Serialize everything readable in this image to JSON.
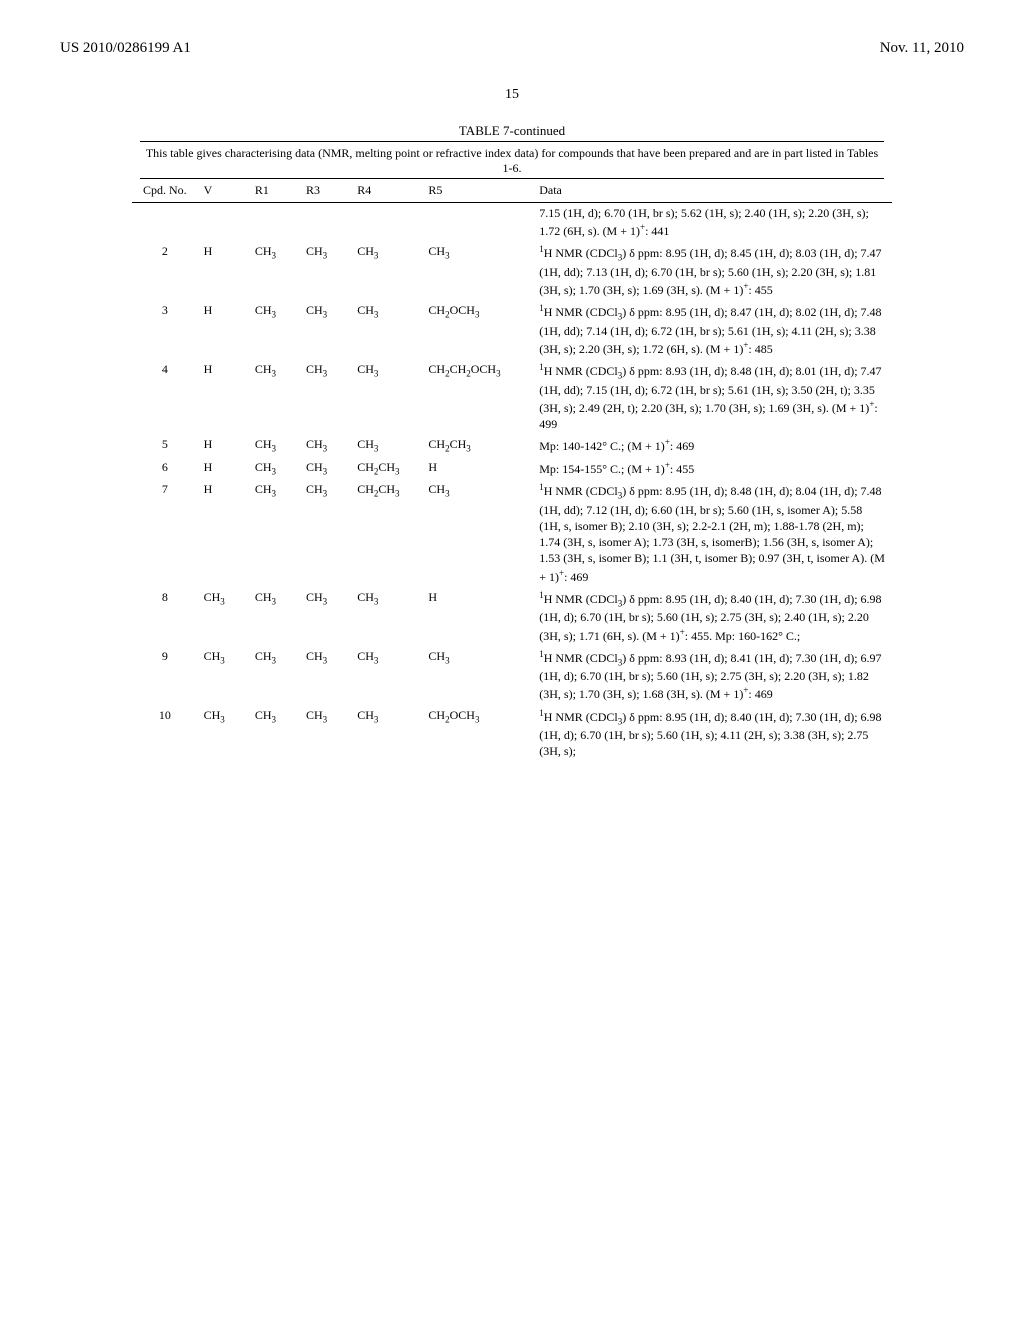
{
  "header": {
    "left": "US 2010/0286199 A1",
    "right": "Nov. 11, 2010"
  },
  "page_number": "15",
  "table": {
    "title": "TABLE 7-continued",
    "caption": "This table gives characterising data (NMR, melting point or refractive index data) for compounds that have been prepared and are in part listed in Tables 1-6.",
    "columns": [
      "Cpd. No.",
      "V",
      "R1",
      "R3",
      "R4",
      "R5",
      "Data"
    ],
    "rows": [
      {
        "cpd": "",
        "v": "",
        "r1": "",
        "r3": "",
        "r4": "",
        "r5": "",
        "data": "7.15 (1H, d); 6.70 (1H, br s); 5.62 (1H, s); 2.40 (1H, s); 2.20 (3H, s); 1.72 (6H, s). (M + 1)⁺: 441"
      },
      {
        "cpd": "2",
        "v": "H",
        "r1": "CH₃",
        "r3": "CH₃",
        "r4": "CH₃",
        "r5": "CH₃",
        "data": "¹H NMR (CDCl₃) δ ppm: 8.95 (1H, d); 8.45 (1H, d); 8.03 (1H, d); 7.47 (1H, dd); 7.13 (1H, d); 6.70 (1H, br s); 5.60 (1H, s); 2.20 (3H, s); 1.81 (3H, s); 1.70 (3H, s); 1.69 (3H, s). (M + 1)⁺: 455"
      },
      {
        "cpd": "3",
        "v": "H",
        "r1": "CH₃",
        "r3": "CH₃",
        "r4": "CH₃",
        "r5": "CH₂OCH₃",
        "data": "¹H NMR (CDCl₃) δ ppm: 8.95 (1H, d); 8.47 (1H, d); 8.02 (1H, d); 7.48 (1H, dd); 7.14 (1H, d); 6.72 (1H, br s); 5.61 (1H, s); 4.11 (2H, s); 3.38 (3H, s); 2.20 (3H, s); 1.72 (6H, s). (M + 1)⁺: 485"
      },
      {
        "cpd": "4",
        "v": "H",
        "r1": "CH₃",
        "r3": "CH₃",
        "r4": "CH₃",
        "r5": "CH₂CH₂OCH₃",
        "data": "¹H NMR (CDCl₃) δ ppm: 8.93 (1H, d); 8.48 (1H, d); 8.01 (1H, d); 7.47 (1H, dd); 7.15 (1H, d); 6.72 (1H, br s); 5.61 (1H, s); 3.50 (2H, t); 3.35 (3H, s); 2.49 (2H, t); 2.20 (3H, s); 1.70 (3H, s); 1.69 (3H, s). (M + 1)⁺: 499"
      },
      {
        "cpd": "5",
        "v": "H",
        "r1": "CH₃",
        "r3": "CH₃",
        "r4": "CH₃",
        "r5": "CH₂CH₃",
        "data": "Mp: 140-142° C.; (M + 1)⁺: 469"
      },
      {
        "cpd": "6",
        "v": "H",
        "r1": "CH₃",
        "r3": "CH₃",
        "r4": "CH₂CH₃",
        "r5": "H",
        "data": "Mp: 154-155° C.; (M + 1)⁺: 455"
      },
      {
        "cpd": "7",
        "v": "H",
        "r1": "CH₃",
        "r3": "CH₃",
        "r4": "CH₂CH₃",
        "r5": "CH₃",
        "data": "¹H NMR (CDCl₃) δ ppm: 8.95 (1H, d); 8.48 (1H, d); 8.04 (1H, d); 7.48 (1H, dd); 7.12 (1H, d); 6.60 (1H, br s); 5.60 (1H, s, isomer A); 5.58 (1H, s, isomer B); 2.10 (3H, s); 2.2-2.1 (2H, m); 1.88-1.78 (2H, m); 1.74 (3H, s, isomer A); 1.73 (3H, s, isomerB); 1.56 (3H, s, isomer A); 1.53 (3H, s, isomer B); 1.1 (3H, t, isomer B); 0.97 (3H, t, isomer A). (M + 1)⁺: 469"
      },
      {
        "cpd": "8",
        "v": "CH₃",
        "r1": "CH₃",
        "r3": "CH₃",
        "r4": "CH₃",
        "r5": "H",
        "data": "¹H NMR (CDCl₃) δ ppm: 8.95 (1H, d); 8.40 (1H, d); 7.30 (1H, d); 6.98 (1H, d); 6.70 (1H, br s); 5.60 (1H, s); 2.75 (3H, s); 2.40 (1H, s); 2.20 (3H, s); 1.71 (6H, s). (M + 1)⁺: 455. Mp: 160-162° C.;"
      },
      {
        "cpd": "9",
        "v": "CH₃",
        "r1": "CH₃",
        "r3": "CH₃",
        "r4": "CH₃",
        "r5": "CH₃",
        "data": "¹H NMR (CDCl₃) δ ppm: 8.93 (1H, d); 8.41 (1H, d); 7.30 (1H, d); 6.97 (1H, d); 6.70 (1H, br s); 5.60 (1H, s); 2.75 (3H, s); 2.20 (3H, s); 1.82 (3H, s); 1.70 (3H, s); 1.68 (3H, s). (M + 1)⁺: 469"
      },
      {
        "cpd": "10",
        "v": "CH₃",
        "r1": "CH₃",
        "r3": "CH₃",
        "r4": "CH₃",
        "r5": "CH₂OCH₃",
        "data": "¹H NMR (CDCl₃) δ ppm: 8.95 (1H, d); 8.40 (1H, d); 7.30 (1H, d); 6.98 (1H, d); 6.70 (1H, br s); 5.60 (1H, s); 4.11 (2H, s); 3.38 (3H, s); 2.75 (3H, s);"
      }
    ]
  }
}
